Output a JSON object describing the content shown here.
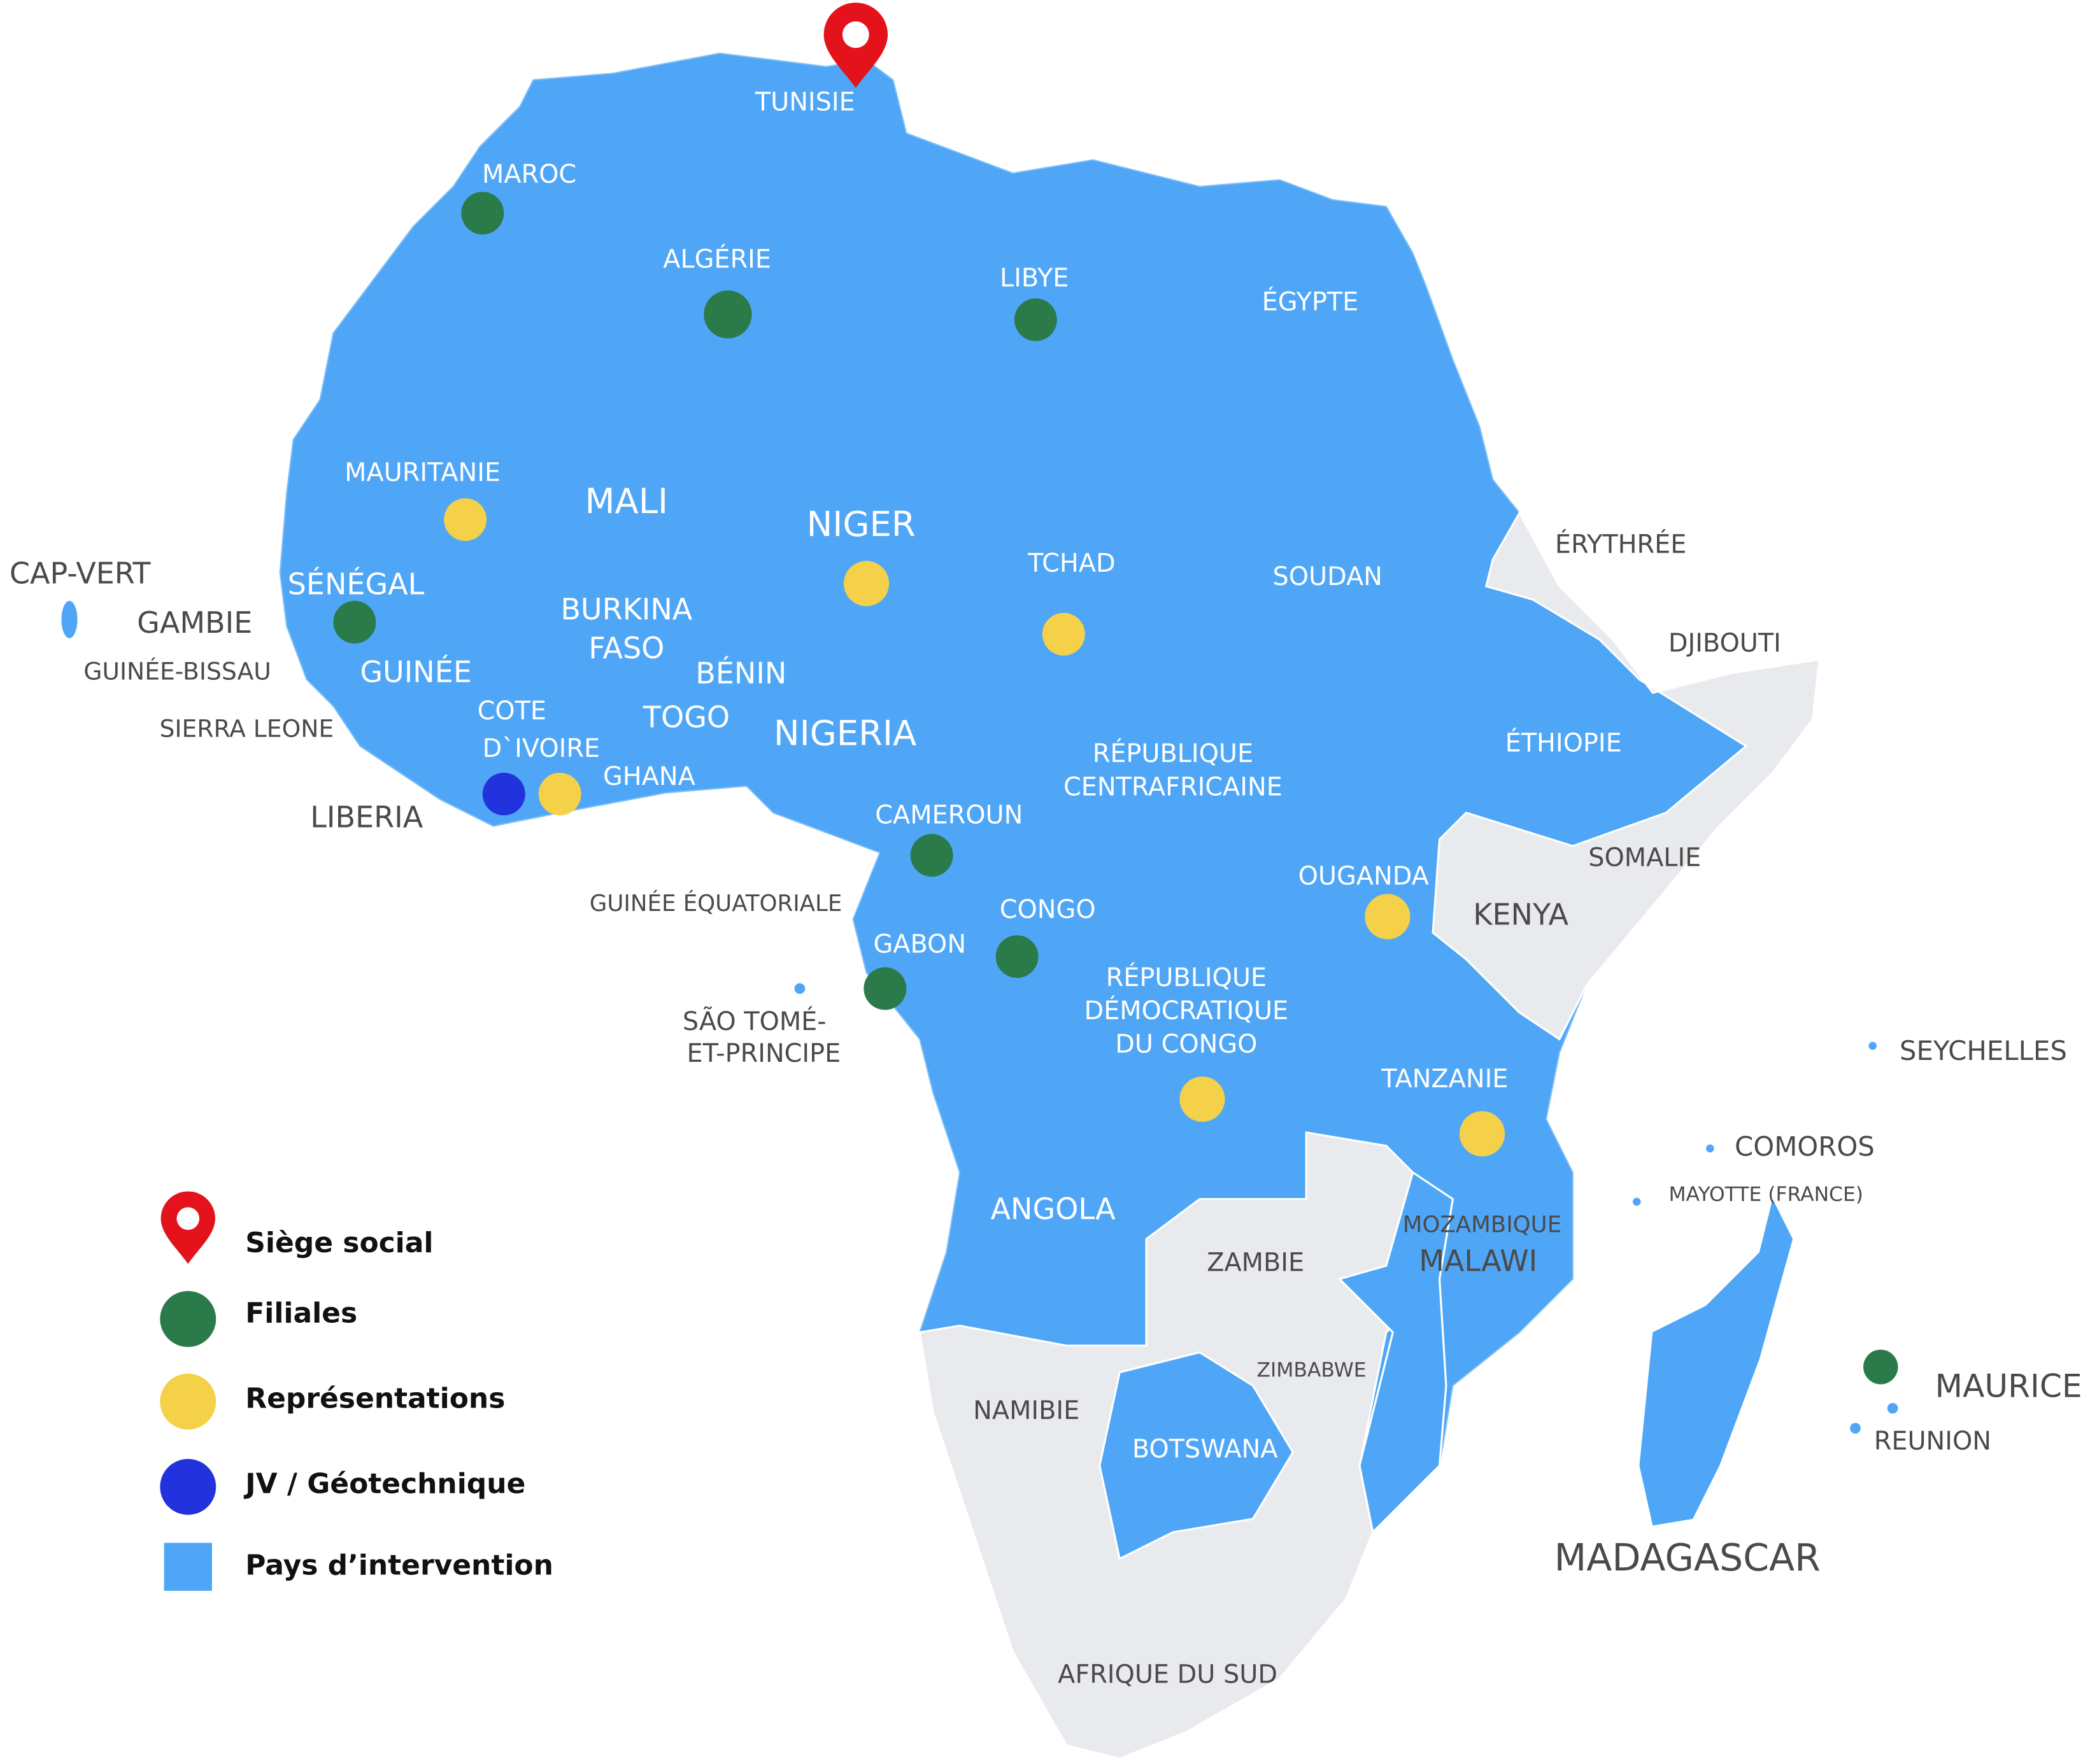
{
  "legend": [
    "Siège social",
    "Filiales",
    "Représentations",
    "JV / Géotechnique",
    "Pays d’intervention"
  ],
  "labels": [
    "TUNISIE",
    "MAROC",
    "ALGÉRIE",
    "LIBYE",
    "ÉGYPTE",
    "MAURITANIE",
    "MALI",
    "NIGER",
    "TCHAD",
    "SOUDAN",
    "ÉRYTHRÉE",
    "CAP-VERT",
    "SÉNÉGAL",
    "GAMBIE",
    "BURKINA",
    "FASO",
    "DJIBOUTI",
    "GUINÉE-BISSAU",
    "GUINÉE",
    "BÉNIN",
    "COTE",
    "TOGO",
    "NIGERIA",
    "SIERRA LEONE",
    "ÉTHIOPIE",
    "RÉPUBLIQUE",
    "CENTRAFRICAINE",
    "D`IVOIRE",
    "GHANA",
    "LIBERIA",
    "CAMEROUN",
    "SOMALIE",
    "OUGANDA",
    "GUINÉE ÉQUATORIALE",
    "KENYA",
    "CONGO",
    "GABON",
    "RÉPUBLIQUE",
    "DÉMOCRATIQUE",
    "DU CONGO",
    "SÃO TOMÉ-",
    "ET-PRINCIPE",
    "SEYCHELLES",
    "TANZANIE",
    "COMOROS",
    "MAYOTTE (FRANCE)",
    "ANGOLA",
    "MOZAMBIQUE",
    "ZAMBIE",
    "MALAWI",
    "MAURICE",
    "ZIMBABWE",
    "NAMIBIE",
    "BOTSWANA",
    "REUNION",
    "MADAGASCAR",
    "AFRIQUE DU SUD"
  ]
}
